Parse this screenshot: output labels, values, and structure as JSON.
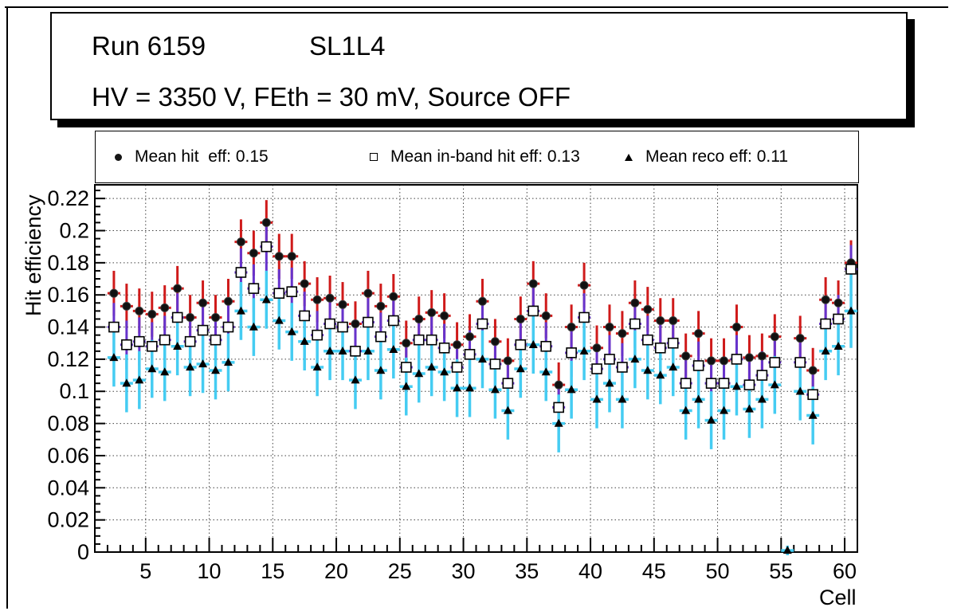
{
  "window": {
    "app": "ROOT canvas"
  },
  "title": {
    "run": "Run 6159",
    "chamber": "SL1L4",
    "conditions": "HV = 3350 V, FEth = 30 mV, Source OFF"
  },
  "legend": {
    "entries": [
      {
        "marker": "filled-circle-icon",
        "label": "Mean hit  eff: 0.15"
      },
      {
        "marker": "open-square-icon",
        "label": "Mean in-band hit eff: 0.13"
      },
      {
        "marker": "filled-triangle-icon",
        "label": "Mean reco eff: 0.11"
      }
    ]
  },
  "chart_data": {
    "type": "scatter",
    "title": "",
    "xlabel": "Cell",
    "ylabel": "Hit efficiency",
    "x_range": [
      1,
      61
    ],
    "y_range": [
      0,
      0.2285
    ],
    "grid": true,
    "legend_position": "top",
    "x_major_ticks": [
      5,
      10,
      15,
      20,
      25,
      30,
      35,
      40,
      45,
      50,
      55,
      60
    ],
    "y_major_ticks": [
      0,
      0.02,
      0.04,
      0.06,
      0.08,
      0.1,
      0.12,
      0.14,
      0.16,
      0.18,
      0.2,
      0.22
    ],
    "y_tick_labels": [
      "0",
      "0.02",
      "0.04",
      "0.06",
      "0.08",
      "0.1",
      "0.12",
      "0.14",
      "0.16",
      "0.18",
      "0.2",
      "0.22"
    ],
    "colors": {
      "hit_err": "#cf1a1a",
      "inband_err": "#6633cc",
      "reco_err": "#45ccf2",
      "marker": "#111111"
    },
    "series": [
      {
        "key": "mean-hit-eff",
        "name": "Mean hit  eff: 0.15",
        "mean": 0.15,
        "marker": "filled-circle",
        "bar_color": "#cf1a1a",
        "err_default": 0.014,
        "points": [
          [
            2.5,
            0.161
          ],
          [
            3.5,
            0.153
          ],
          [
            4.5,
            0.15
          ],
          [
            5.5,
            0.148
          ],
          [
            6.5,
            0.152
          ],
          [
            7.5,
            0.164
          ],
          [
            8.5,
            0.146
          ],
          [
            9.5,
            0.155
          ],
          [
            10.5,
            0.146
          ],
          [
            11.5,
            0.156
          ],
          [
            12.5,
            0.193
          ],
          [
            13.5,
            0.186
          ],
          [
            14.5,
            0.205
          ],
          [
            15.5,
            0.184
          ],
          [
            16.5,
            0.184
          ],
          [
            17.5,
            0.167
          ],
          [
            18.5,
            0.157
          ],
          [
            19.5,
            0.158
          ],
          [
            20.5,
            0.154
          ],
          [
            21.5,
            0.142
          ],
          [
            22.5,
            0.161
          ],
          [
            23.5,
            0.153
          ],
          [
            24.5,
            0.159
          ],
          [
            25.5,
            0.13
          ],
          [
            26.5,
            0.145
          ],
          [
            27.5,
            0.149
          ],
          [
            28.5,
            0.147
          ],
          [
            29.5,
            0.129
          ],
          [
            30.5,
            0.134
          ],
          [
            31.5,
            0.156
          ],
          [
            32.5,
            0.131
          ],
          [
            33.5,
            0.119
          ],
          [
            34.5,
            0.145
          ],
          [
            35.5,
            0.167
          ],
          [
            36.5,
            0.147
          ],
          [
            37.5,
            0.104
          ],
          [
            38.5,
            0.14
          ],
          [
            39.5,
            0.166
          ],
          [
            40.5,
            0.127
          ],
          [
            41.5,
            0.14
          ],
          [
            42.5,
            0.136
          ],
          [
            43.5,
            0.155
          ],
          [
            44.5,
            0.151
          ],
          [
            45.5,
            0.144
          ],
          [
            46.5,
            0.144
          ],
          [
            47.5,
            0.122
          ],
          [
            48.5,
            0.136
          ],
          [
            49.5,
            0.119
          ],
          [
            50.5,
            0.119
          ],
          [
            51.5,
            0.14
          ],
          [
            52.5,
            0.121
          ],
          [
            53.5,
            0.122
          ],
          [
            54.5,
            0.134
          ],
          [
            56.5,
            0.133
          ],
          [
            57.5,
            0.113
          ],
          [
            58.5,
            0.157
          ],
          [
            59.5,
            0.155
          ],
          [
            60.5,
            0.18
          ]
        ]
      },
      {
        "key": "mean-inband-hit-eff",
        "name": "Mean in-band hit eff: 0.13",
        "mean": 0.13,
        "marker": "open-square",
        "bar_color": "#6633cc",
        "err_default": 0.015,
        "points": [
          [
            2.5,
            0.14
          ],
          [
            3.5,
            0.129
          ],
          [
            4.5,
            0.131
          ],
          [
            5.5,
            0.128
          ],
          [
            6.5,
            0.132
          ],
          [
            7.5,
            0.146
          ],
          [
            8.5,
            0.131
          ],
          [
            9.5,
            0.138
          ],
          [
            10.5,
            0.132
          ],
          [
            11.5,
            0.14
          ],
          [
            12.5,
            0.174
          ],
          [
            13.5,
            0.164
          ],
          [
            14.5,
            0.19
          ],
          [
            15.5,
            0.161
          ],
          [
            16.5,
            0.162
          ],
          [
            17.5,
            0.147
          ],
          [
            18.5,
            0.135
          ],
          [
            19.5,
            0.142
          ],
          [
            20.5,
            0.14
          ],
          [
            21.5,
            0.125
          ],
          [
            22.5,
            0.143
          ],
          [
            23.5,
            0.134
          ],
          [
            24.5,
            0.144
          ],
          [
            25.5,
            0.115
          ],
          [
            26.5,
            0.132
          ],
          [
            27.5,
            0.132
          ],
          [
            28.5,
            0.127
          ],
          [
            29.5,
            0.115
          ],
          [
            30.5,
            0.123
          ],
          [
            31.5,
            0.142
          ],
          [
            32.5,
            0.117
          ],
          [
            33.5,
            0.105
          ],
          [
            34.5,
            0.129
          ],
          [
            35.5,
            0.15
          ],
          [
            36.5,
            0.128
          ],
          [
            37.5,
            0.09
          ],
          [
            38.5,
            0.124
          ],
          [
            39.5,
            0.146
          ],
          [
            40.5,
            0.114
          ],
          [
            41.5,
            0.12
          ],
          [
            42.5,
            0.115
          ],
          [
            43.5,
            0.142
          ],
          [
            44.5,
            0.132
          ],
          [
            45.5,
            0.127
          ],
          [
            46.5,
            0.13
          ],
          [
            47.5,
            0.105
          ],
          [
            48.5,
            0.116
          ],
          [
            49.5,
            0.105
          ],
          [
            50.5,
            0.105
          ],
          [
            51.5,
            0.12
          ],
          [
            52.5,
            0.104
          ],
          [
            53.5,
            0.11
          ],
          [
            54.5,
            0.118
          ],
          [
            56.5,
            0.118
          ],
          [
            57.5,
            0.098
          ],
          [
            58.5,
            0.142
          ],
          [
            59.5,
            0.145
          ],
          [
            60.5,
            0.176
          ]
        ]
      },
      {
        "key": "mean-reco-eff",
        "name": "Mean reco eff: 0.11",
        "mean": 0.11,
        "marker": "filled-triangle",
        "bar_color": "#45ccf2",
        "err_default": 0.018,
        "points": [
          [
            2.5,
            0.121
          ],
          [
            3.5,
            0.105
          ],
          [
            4.5,
            0.107
          ],
          [
            5.5,
            0.114
          ],
          [
            6.5,
            0.112
          ],
          [
            7.5,
            0.128
          ],
          [
            8.5,
            0.115
          ],
          [
            9.5,
            0.117
          ],
          [
            10.5,
            0.113
          ],
          [
            11.5,
            0.118
          ],
          [
            12.5,
            0.15
          ],
          [
            13.5,
            0.14
          ],
          [
            14.5,
            0.157
          ],
          [
            15.5,
            0.144
          ],
          [
            16.5,
            0.137
          ],
          [
            17.5,
            0.131
          ],
          [
            18.5,
            0.115
          ],
          [
            19.5,
            0.125
          ],
          [
            20.5,
            0.125
          ],
          [
            21.5,
            0.107
          ],
          [
            22.5,
            0.125
          ],
          [
            23.5,
            0.113
          ],
          [
            24.5,
            0.126
          ],
          [
            25.5,
            0.103
          ],
          [
            26.5,
            0.111
          ],
          [
            27.5,
            0.115
          ],
          [
            28.5,
            0.112
          ],
          [
            29.5,
            0.102
          ],
          [
            30.5,
            0.102
          ],
          [
            31.5,
            0.12
          ],
          [
            32.5,
            0.101
          ],
          [
            33.5,
            0.088
          ],
          [
            34.5,
            0.114
          ],
          [
            35.5,
            0.129
          ],
          [
            36.5,
            0.112
          ],
          [
            37.5,
            0.08
          ],
          [
            38.5,
            0.101
          ],
          [
            39.5,
            0.125
          ],
          [
            40.5,
            0.095
          ],
          [
            41.5,
            0.105
          ],
          [
            42.5,
            0.095
          ],
          [
            43.5,
            0.12
          ],
          [
            44.5,
            0.113
          ],
          [
            45.5,
            0.11
          ],
          [
            46.5,
            0.115
          ],
          [
            47.5,
            0.088
          ],
          [
            48.5,
            0.095
          ],
          [
            49.5,
            0.082
          ],
          [
            50.5,
            0.088
          ],
          [
            51.5,
            0.103
          ],
          [
            52.5,
            0.089
          ],
          [
            53.5,
            0.095
          ],
          [
            54.5,
            0.104
          ],
          [
            55.5,
            0.001,
            0.003
          ],
          [
            56.5,
            0.1
          ],
          [
            57.5,
            0.085
          ],
          [
            58.5,
            0.125
          ],
          [
            59.5,
            0.128
          ],
          [
            60.5,
            0.15,
            0.023
          ]
        ]
      }
    ]
  }
}
